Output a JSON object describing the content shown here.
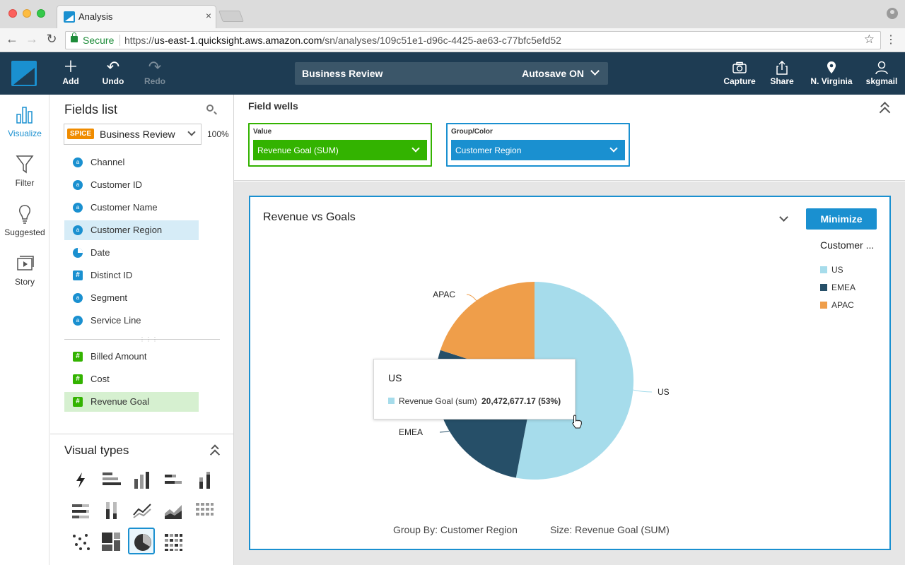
{
  "browser": {
    "tab_title": "Analysis",
    "tab_close": "×",
    "secure_label": "Secure",
    "url_scheme": "https://",
    "url_host": "us-east-1.quicksight.aws.amazon.com",
    "url_path": "/sn/analyses/109c51e1-d96c-4425-ae63-c77bfc5efd52"
  },
  "toolbar": {
    "add": "Add",
    "undo": "Undo",
    "redo": "Redo",
    "analysis_name": "Business Review",
    "autosave": "Autosave ON",
    "capture": "Capture",
    "share": "Share",
    "region": "N. Virginia",
    "user": "skgmail"
  },
  "rail": {
    "items": [
      {
        "label": "Visualize",
        "icon": "bar-chart-icon",
        "active": true
      },
      {
        "label": "Filter",
        "icon": "funnel-icon"
      },
      {
        "label": "Suggested",
        "icon": "lightbulb-icon"
      },
      {
        "label": "Story",
        "icon": "story-icon"
      }
    ]
  },
  "fields_panel": {
    "title": "Fields list",
    "dataset_badge": "SPICE",
    "dataset_name": "Business Review",
    "dataset_pct": "100%",
    "dimensions": [
      {
        "label": "Channel",
        "type": "string"
      },
      {
        "label": "Customer ID",
        "type": "string"
      },
      {
        "label": "Customer Name",
        "type": "string"
      },
      {
        "label": "Customer Region",
        "type": "string",
        "selected": true
      },
      {
        "label": "Date",
        "type": "date"
      },
      {
        "label": "Distinct ID",
        "type": "number"
      },
      {
        "label": "Segment",
        "type": "string"
      },
      {
        "label": "Service Line",
        "type": "string"
      }
    ],
    "measures": [
      {
        "label": "Billed Amount"
      },
      {
        "label": "Cost"
      },
      {
        "label": "Revenue Goal",
        "selected": true
      }
    ],
    "icon_glyph_string": "a",
    "icon_glyph_number": "#"
  },
  "visual_types": {
    "title": "Visual types",
    "items": [
      "autograph",
      "horizontal-bar",
      "vertical-bar",
      "horizontal-stacked-bar",
      "vertical-stacked-bar",
      "horizontal-100-bar",
      "vertical-100-bar",
      "line",
      "area-line",
      "pivot-table",
      "scatter-plot",
      "tree-map",
      "pie-chart",
      "heat-map"
    ],
    "selected": "pie-chart"
  },
  "field_wells": {
    "title": "Field wells",
    "value_label": "Value",
    "value_field": "Revenue Goal (SUM)",
    "group_label": "Group/Color",
    "group_field": "Customer Region"
  },
  "visual": {
    "title": "Revenue vs Goals",
    "minimize": "Minimize",
    "legend_title": "Customer ...",
    "footer_group": "Group By: Customer Region",
    "footer_size": "Size: Revenue Goal (SUM)",
    "tooltip": {
      "title": "US",
      "metric": "Revenue Goal (sum)",
      "value": "20,472,677.17 (53%)"
    }
  },
  "colors": {
    "accent": "#1a90d0",
    "measure_green": "#33b300",
    "us": "#a6dceb",
    "emea": "#264f68",
    "apac": "#ef9e4a"
  },
  "chart_data": {
    "type": "pie",
    "title": "Revenue vs Goals",
    "categories": [
      "US",
      "EMEA",
      "APAC"
    ],
    "values": [
      53,
      27,
      20
    ],
    "colors": [
      "#a6dceb",
      "#264f68",
      "#ef9e4a"
    ],
    "legend": {
      "title": "Customer ...",
      "entries": [
        "US",
        "EMEA",
        "APAC"
      ],
      "position": "right"
    }
  }
}
